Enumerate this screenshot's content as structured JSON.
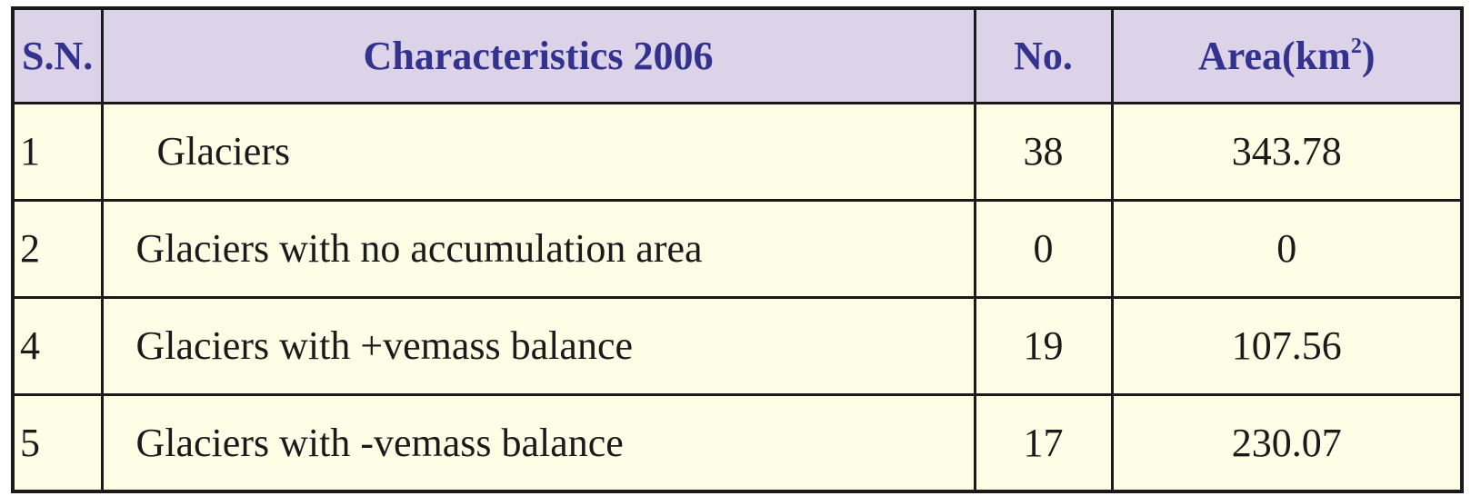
{
  "table": {
    "headers": {
      "sn": "S.N.",
      "characteristics": "Characteristics 2006",
      "no": "No.",
      "area_prefix": "Area(km",
      "area_sup": "2",
      "area_suffix": ")"
    },
    "rows": [
      {
        "sn": "1",
        "characteristics": " Glaciers",
        "no": "38",
        "area": "343.78"
      },
      {
        "sn": "2",
        "characteristics": "Glaciers with no accumulation area",
        "no": "0",
        "area": "0"
      },
      {
        "sn": "4",
        "characteristics": "Glaciers with +vemass balance",
        "no": "19",
        "area": "107.56"
      },
      {
        "sn": "5",
        "characteristics": "Glaciers with -vemass balance",
        "no": "17",
        "area": "230.07"
      }
    ]
  },
  "colors": {
    "header_bg": "#ddd3e8",
    "header_text": "#33338f",
    "body_bg": "#fefee6",
    "border": "#1a1a1a"
  }
}
